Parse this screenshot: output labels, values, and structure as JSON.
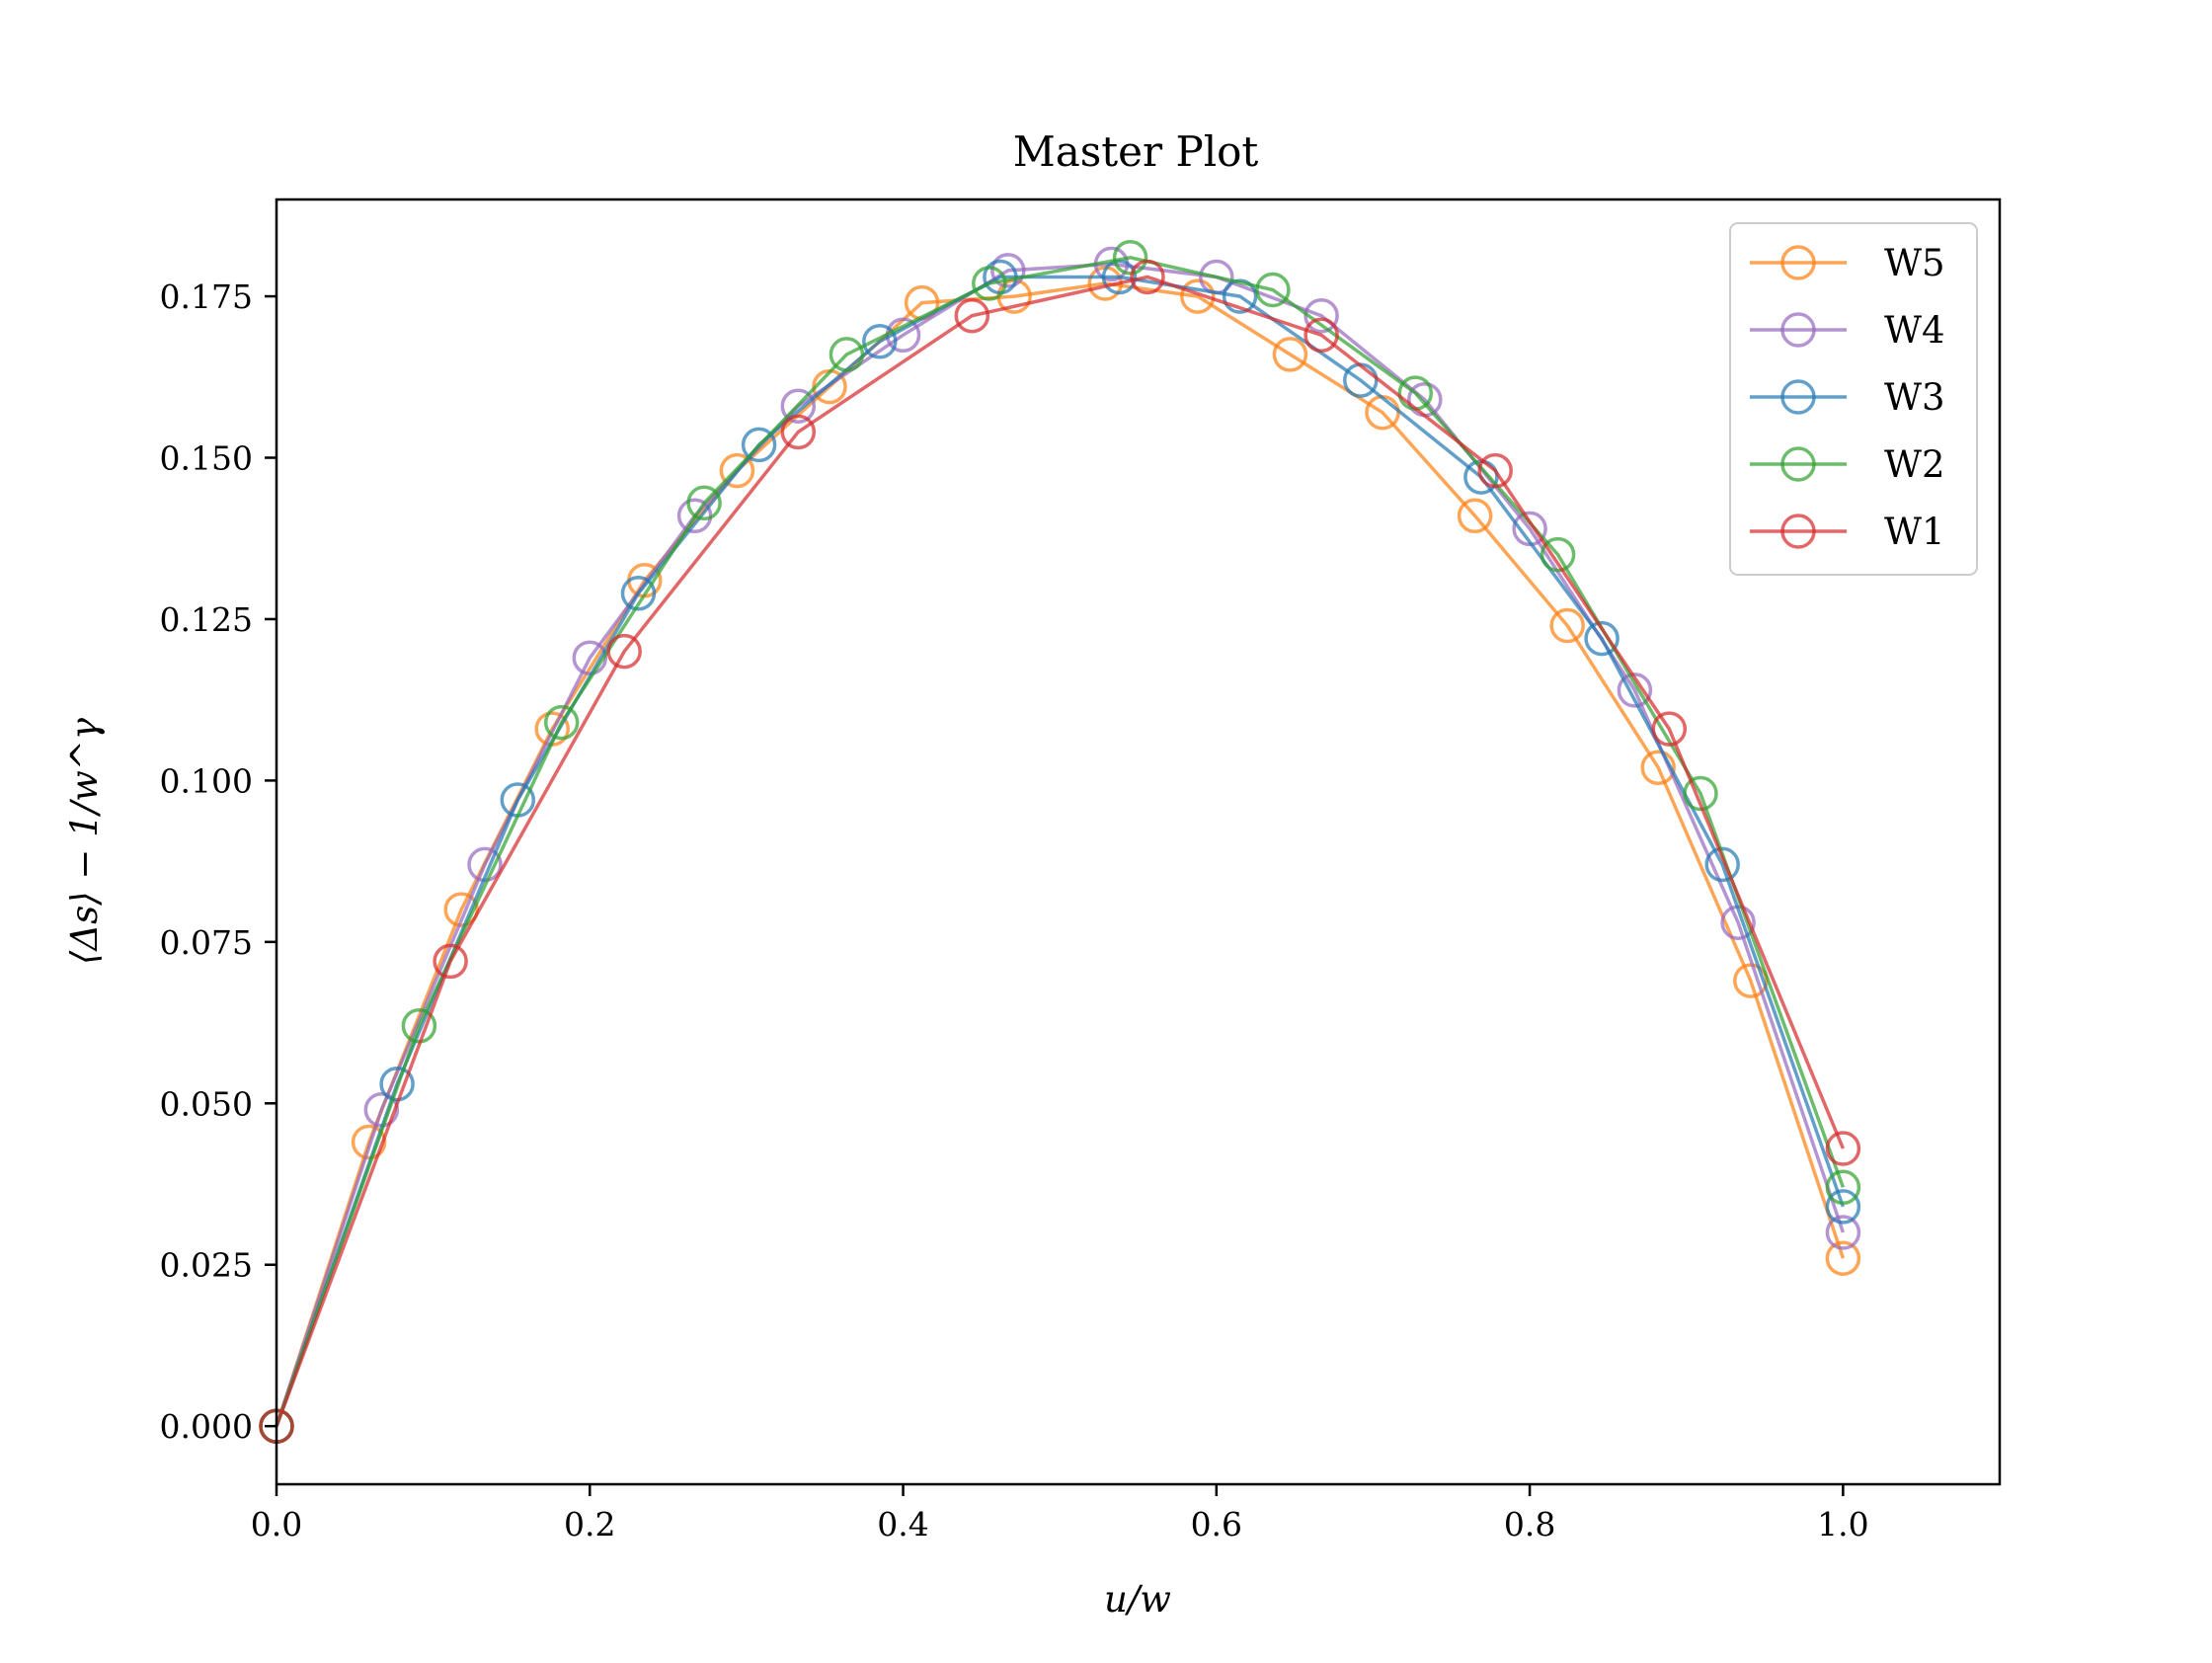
{
  "chart_data": {
    "type": "line",
    "title": "Master Plot",
    "xlabel": "u/w",
    "ylabel": "⟨Δs⟩ − 1/w^γ",
    "xlim": [
      0.0,
      1.1
    ],
    "ylim": [
      -0.009,
      0.19
    ],
    "grid": false,
    "legend_position": "top-right",
    "marker": "open-circle",
    "x_ticks": [
      "0.0",
      "0.2",
      "0.4",
      "0.6",
      "0.8",
      "1.0"
    ],
    "x_tick_values": [
      0.0,
      0.2,
      0.4,
      0.6,
      0.8,
      1.0
    ],
    "y_ticks": [
      "0.000",
      "0.025",
      "0.050",
      "0.075",
      "0.100",
      "0.125",
      "0.150",
      "0.175"
    ],
    "y_tick_values": [
      0.0,
      0.025,
      0.05,
      0.075,
      0.1,
      0.125,
      0.15,
      0.175
    ],
    "series": [
      {
        "name": "W5",
        "color": "#ff7f0e",
        "x": [
          0.0,
          0.059,
          0.118,
          0.176,
          0.235,
          0.294,
          0.353,
          0.412,
          0.471,
          0.529,
          0.588,
          0.647,
          0.706,
          0.765,
          0.824,
          0.882,
          0.941,
          1.0
        ],
        "y": [
          0.0,
          0.044,
          0.08,
          0.108,
          0.131,
          0.148,
          0.161,
          0.174,
          0.175,
          0.177,
          0.175,
          0.166,
          0.157,
          0.141,
          0.124,
          0.102,
          0.069,
          0.026
        ]
      },
      {
        "name": "W4",
        "color": "#9467bd",
        "x": [
          0.0,
          0.067,
          0.133,
          0.2,
          0.267,
          0.333,
          0.4,
          0.467,
          0.533,
          0.6,
          0.667,
          0.733,
          0.8,
          0.867,
          0.933,
          1.0
        ],
        "y": [
          0.0,
          0.049,
          0.087,
          0.119,
          0.141,
          0.158,
          0.169,
          0.179,
          0.18,
          0.178,
          0.172,
          0.159,
          0.139,
          0.114,
          0.078,
          0.03
        ]
      },
      {
        "name": "W3",
        "color": "#1f77b4",
        "x": [
          0.0,
          0.077,
          0.154,
          0.231,
          0.308,
          0.385,
          0.462,
          0.538,
          0.615,
          0.692,
          0.769,
          0.846,
          0.923,
          1.0
        ],
        "y": [
          0.0,
          0.053,
          0.097,
          0.129,
          0.152,
          0.168,
          0.178,
          0.178,
          0.175,
          0.162,
          0.147,
          0.122,
          0.087,
          0.034
        ]
      },
      {
        "name": "W2",
        "color": "#2ca02c",
        "x": [
          0.0,
          0.091,
          0.182,
          0.273,
          0.364,
          0.455,
          0.545,
          0.636,
          0.727,
          0.818,
          0.909,
          1.0
        ],
        "y": [
          0.0,
          0.062,
          0.109,
          0.143,
          0.166,
          0.177,
          0.181,
          0.176,
          0.16,
          0.135,
          0.098,
          0.037
        ]
      },
      {
        "name": "W1",
        "color": "#d62728",
        "x": [
          0.0,
          0.111,
          0.222,
          0.333,
          0.444,
          0.556,
          0.667,
          0.778,
          0.889,
          1.0
        ],
        "y": [
          0.0,
          0.072,
          0.12,
          0.154,
          0.172,
          0.178,
          0.169,
          0.148,
          0.108,
          0.043
        ]
      }
    ]
  }
}
